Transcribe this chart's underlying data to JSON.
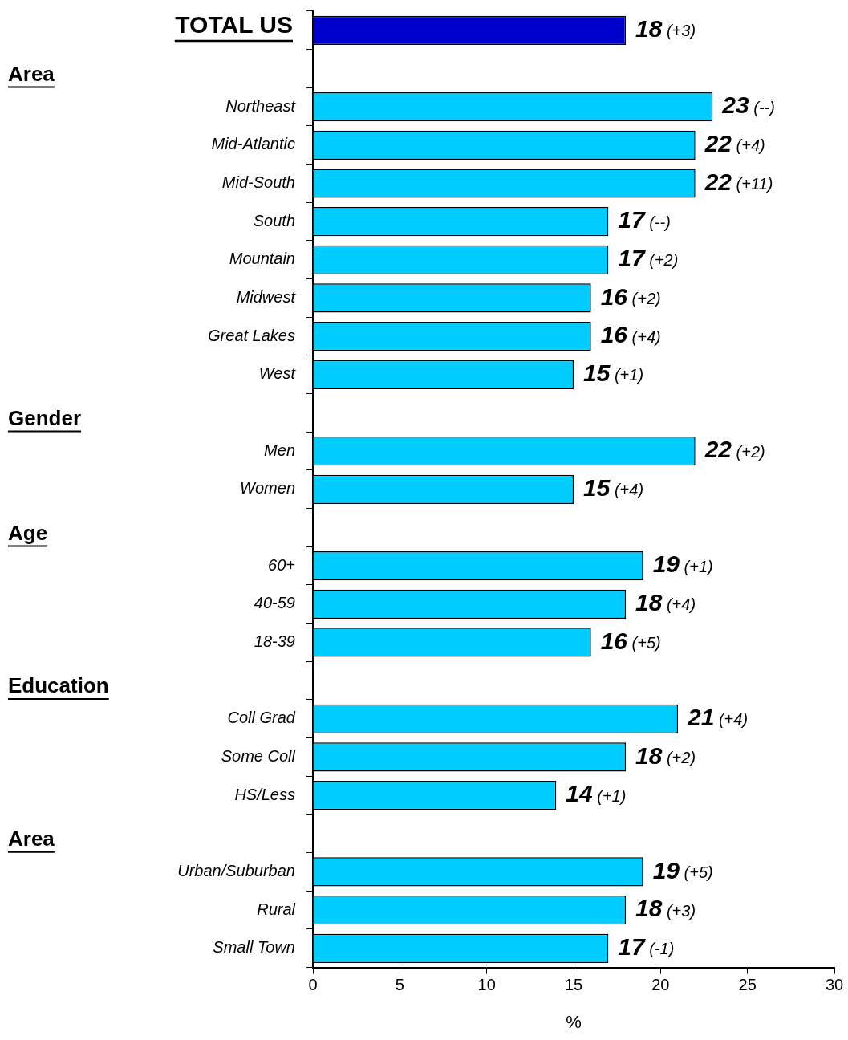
{
  "chart_data": {
    "type": "bar",
    "orientation": "horizontal",
    "categories": [
      null,
      null,
      "Northeast",
      "Mid-Atlantic",
      "Mid-South",
      "South",
      "Mountain",
      "Midwest",
      "Great Lakes",
      "West",
      null,
      "Men",
      "Women",
      null,
      "60+",
      "40-59",
      "18-39",
      null,
      "Coll Grad",
      "Some Coll",
      "HS/Less",
      null,
      "Urban/Suburban",
      "Rural",
      "Small Town"
    ],
    "annotations": [
      "TOTAL US",
      "Area",
      "Gender",
      "Age",
      "Education",
      "Area"
    ],
    "values": [
      18,
      null,
      23,
      22,
      22,
      17,
      17,
      16,
      16,
      15,
      null,
      22,
      15,
      null,
      19,
      18,
      16,
      null,
      21,
      18,
      14,
      null,
      19,
      18,
      17
    ],
    "value_labels": [
      "18 (+3)",
      null,
      "23 (--)",
      "22 (+4)",
      "22 (+11)",
      "17 (--)",
      "17 (+2)",
      "16 (+2)",
      "16 (+4)",
      "15 (+1)",
      null,
      "22 (+2)",
      "15 (+4)",
      null,
      "19 (+1)",
      "18 (+4)",
      "16 (+5)",
      null,
      "21 (+4)",
      "18 (+2)",
      "14 (+1)",
      null,
      "19 (+5)",
      "18 (+3)",
      "17 (-1)"
    ],
    "colors": [
      "#0000cc",
      null,
      "#00ccff",
      "#00ccff",
      "#00ccff",
      "#00ccff",
      "#00ccff",
      "#00ccff",
      "#00ccff",
      "#00ccff",
      null,
      "#00ccff",
      "#00ccff",
      null,
      "#00ccff",
      "#00ccff",
      "#00ccff",
      null,
      "#00ccff",
      "#00ccff",
      "#00ccff",
      null,
      "#00ccff",
      "#00ccff",
      "#00ccff"
    ],
    "xlim": [
      0,
      30
    ],
    "xticks": [
      0,
      5,
      10,
      15,
      20,
      25,
      30
    ],
    "xlabel": "%",
    "grid": false
  }
}
